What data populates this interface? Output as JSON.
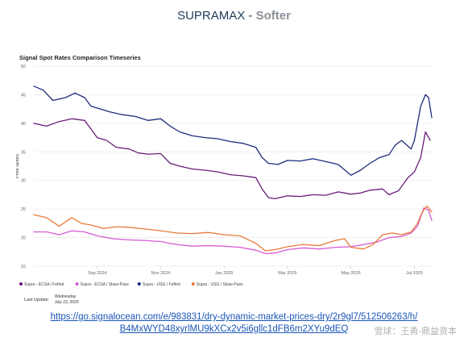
{
  "header": {
    "title": "SUPRAMAX",
    "separator": "-",
    "subtitle": "Softer"
  },
  "link": {
    "line1": "https://go.signalocean.com/e/983831/dry-dynamic-market-prices-dry/2r9gl7/512506263/h/",
    "line2": "B4MxWYD48xyrlMU9kXCx2v5i6gllc1dFB6m2XYu9dEQ"
  },
  "watermark": "雪球：王勇-鼎益资本",
  "colors": {
    "series1": "#6a1b7a",
    "series2": "#d65ad3",
    "series3": "#1e2c7a",
    "series4": "#e87a3a"
  },
  "chart_data": {
    "type": "line",
    "title": "Signal Spot Rates Comparison Timeseries",
    "ylabel": "Price ($/ton)",
    "ylim": [
      15,
      50
    ],
    "yticks": [
      "15",
      "20",
      "25",
      "30",
      "35",
      "40",
      "45",
      "50"
    ],
    "xticks": [
      {
        "x": 2.0,
        "label": "Sep 2024"
      },
      {
        "x": 4.0,
        "label": "Nov 2024"
      },
      {
        "x": 6.0,
        "label": "Jan 2025"
      },
      {
        "x": 8.0,
        "label": "Mar 2025"
      },
      {
        "x": 10.0,
        "label": "May 2025"
      },
      {
        "x": 12.0,
        "label": "Jul 2025"
      }
    ],
    "xlim": [
      0,
      12.6
    ],
    "grid": true,
    "legend_position": "bottom",
    "footer_label": "Last Update:",
    "footer_date_line1": "Wednesday",
    "footer_date_line2": "July 23, 2025",
    "series": [
      {
        "name": "Supra - ECSA / Fefted",
        "color": "#6a1b7a",
        "points": [
          [
            0,
            40.0
          ],
          [
            0.4,
            39.5
          ],
          [
            0.8,
            40.3
          ],
          [
            1.2,
            40.8
          ],
          [
            1.6,
            40.5
          ],
          [
            1.8,
            39.0
          ],
          [
            2.0,
            37.5
          ],
          [
            2.3,
            37.0
          ],
          [
            2.6,
            35.8
          ],
          [
            3.0,
            35.5
          ],
          [
            3.3,
            34.8
          ],
          [
            3.6,
            34.6
          ],
          [
            4.0,
            34.7
          ],
          [
            4.3,
            33.0
          ],
          [
            4.6,
            32.5
          ],
          [
            5.0,
            32.0
          ],
          [
            5.4,
            31.8
          ],
          [
            5.8,
            31.5
          ],
          [
            6.2,
            31.0
          ],
          [
            6.6,
            30.8
          ],
          [
            7.0,
            30.5
          ],
          [
            7.2,
            28.5
          ],
          [
            7.4,
            27.0
          ],
          [
            7.6,
            26.8
          ],
          [
            8.0,
            27.3
          ],
          [
            8.4,
            27.2
          ],
          [
            8.8,
            27.5
          ],
          [
            9.2,
            27.4
          ],
          [
            9.6,
            28.0
          ],
          [
            10.0,
            27.6
          ],
          [
            10.3,
            27.8
          ],
          [
            10.6,
            28.3
          ],
          [
            11.0,
            28.5
          ],
          [
            11.2,
            27.5
          ],
          [
            11.5,
            28.2
          ],
          [
            11.8,
            30.5
          ],
          [
            12.0,
            31.5
          ],
          [
            12.2,
            34.0
          ],
          [
            12.35,
            38.5
          ],
          [
            12.5,
            37.0
          ]
        ]
      },
      {
        "name": "Supra - ECSA / Skaw-Pass",
        "color": "#d65ad3",
        "points": [
          [
            0,
            21.0
          ],
          [
            0.4,
            21.0
          ],
          [
            0.8,
            20.5
          ],
          [
            1.2,
            21.2
          ],
          [
            1.6,
            21.0
          ],
          [
            2.0,
            20.3
          ],
          [
            2.5,
            19.8
          ],
          [
            3.0,
            19.6
          ],
          [
            3.5,
            19.5
          ],
          [
            4.0,
            19.3
          ],
          [
            4.5,
            18.8
          ],
          [
            5.0,
            18.5
          ],
          [
            5.5,
            18.6
          ],
          [
            6.0,
            18.5
          ],
          [
            6.5,
            18.3
          ],
          [
            7.0,
            17.8
          ],
          [
            7.3,
            17.2
          ],
          [
            7.6,
            17.3
          ],
          [
            8.0,
            17.9
          ],
          [
            8.5,
            18.2
          ],
          [
            9.0,
            18.0
          ],
          [
            9.5,
            18.3
          ],
          [
            10.0,
            18.4
          ],
          [
            10.4,
            18.8
          ],
          [
            10.8,
            19.2
          ],
          [
            11.2,
            20.0
          ],
          [
            11.6,
            20.2
          ],
          [
            11.9,
            20.8
          ],
          [
            12.1,
            22.0
          ],
          [
            12.3,
            25.2
          ],
          [
            12.45,
            24.8
          ],
          [
            12.55,
            23.0
          ]
        ]
      },
      {
        "name": "Supra - USG / Fefted",
        "color": "#1e2c7a",
        "points": [
          [
            0,
            46.5
          ],
          [
            0.3,
            45.8
          ],
          [
            0.6,
            44.0
          ],
          [
            1.0,
            44.5
          ],
          [
            1.3,
            45.3
          ],
          [
            1.6,
            44.5
          ],
          [
            1.8,
            43.0
          ],
          [
            2.1,
            42.5
          ],
          [
            2.4,
            42.0
          ],
          [
            2.8,
            41.5
          ],
          [
            3.2,
            41.2
          ],
          [
            3.6,
            40.5
          ],
          [
            4.0,
            40.8
          ],
          [
            4.3,
            39.5
          ],
          [
            4.6,
            38.5
          ],
          [
            5.0,
            37.8
          ],
          [
            5.4,
            37.5
          ],
          [
            5.8,
            37.3
          ],
          [
            6.2,
            36.8
          ],
          [
            6.6,
            36.5
          ],
          [
            7.0,
            35.8
          ],
          [
            7.2,
            34.0
          ],
          [
            7.4,
            33.0
          ],
          [
            7.7,
            32.8
          ],
          [
            8.0,
            33.5
          ],
          [
            8.4,
            33.4
          ],
          [
            8.8,
            33.8
          ],
          [
            9.2,
            33.3
          ],
          [
            9.6,
            32.8
          ],
          [
            10.0,
            30.9
          ],
          [
            10.3,
            31.8
          ],
          [
            10.6,
            33.0
          ],
          [
            10.9,
            34.0
          ],
          [
            11.2,
            34.5
          ],
          [
            11.4,
            36.2
          ],
          [
            11.6,
            37.0
          ],
          [
            11.9,
            35.5
          ],
          [
            12.0,
            37.0
          ],
          [
            12.2,
            43.0
          ],
          [
            12.35,
            45.0
          ],
          [
            12.45,
            44.5
          ],
          [
            12.55,
            41.0
          ]
        ]
      },
      {
        "name": "Supra - USG / Skaw-Pass",
        "color": "#e87a3a",
        "points": [
          [
            0,
            24.0
          ],
          [
            0.4,
            23.5
          ],
          [
            0.8,
            22.0
          ],
          [
            1.2,
            23.5
          ],
          [
            1.5,
            22.5
          ],
          [
            1.8,
            22.2
          ],
          [
            2.2,
            21.6
          ],
          [
            2.6,
            21.9
          ],
          [
            3.0,
            21.8
          ],
          [
            3.5,
            21.5
          ],
          [
            4.0,
            21.2
          ],
          [
            4.5,
            20.8
          ],
          [
            5.0,
            20.7
          ],
          [
            5.5,
            20.9
          ],
          [
            6.0,
            20.5
          ],
          [
            6.5,
            20.3
          ],
          [
            7.0,
            19.0
          ],
          [
            7.3,
            17.7
          ],
          [
            7.6,
            17.9
          ],
          [
            8.0,
            18.4
          ],
          [
            8.5,
            18.8
          ],
          [
            9.0,
            18.6
          ],
          [
            9.5,
            19.5
          ],
          [
            9.8,
            19.8
          ],
          [
            10.0,
            18.3
          ],
          [
            10.4,
            18.0
          ],
          [
            10.7,
            18.8
          ],
          [
            11.0,
            20.5
          ],
          [
            11.3,
            20.8
          ],
          [
            11.6,
            20.5
          ],
          [
            11.9,
            21.0
          ],
          [
            12.1,
            22.5
          ],
          [
            12.25,
            24.5
          ],
          [
            12.4,
            25.5
          ],
          [
            12.55,
            24.5
          ]
        ]
      }
    ]
  }
}
